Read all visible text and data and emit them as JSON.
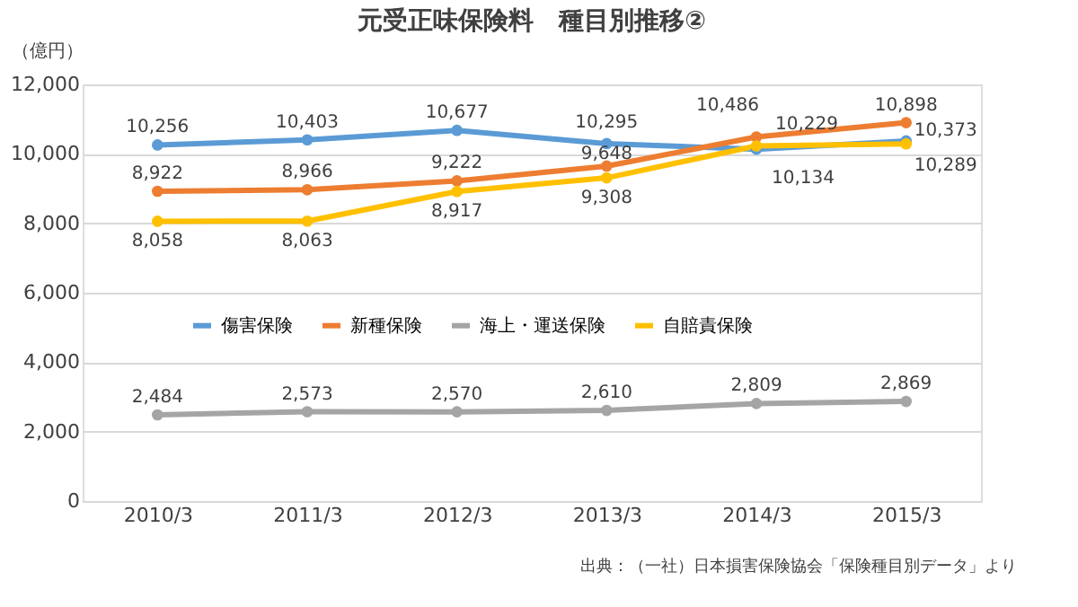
{
  "chart_data": {
    "type": "line",
    "title": "元受正味保険料　種目別推移②",
    "ylabel": "（億円）",
    "categories": [
      "2010/3",
      "2011/3",
      "2012/3",
      "2013/3",
      "2014/3",
      "2015/3"
    ],
    "series": [
      {
        "name": "傷害保険",
        "color": "#5b9bd5",
        "values": [
          10256,
          10403,
          10677,
          10295,
          10134,
          10373
        ],
        "value_labels": [
          "10,256",
          "10,403",
          "10,677",
          "10,295",
          "10,134",
          "10,373"
        ]
      },
      {
        "name": "新種保険",
        "color": "#ed7d31",
        "values": [
          8922,
          8966,
          9222,
          9648,
          10486,
          10898
        ],
        "value_labels": [
          "8,922",
          "8,966",
          "9,222",
          "9,648",
          "10,486",
          "10,898"
        ]
      },
      {
        "name": "海上・運送保険",
        "color": "#a5a5a5",
        "values": [
          2484,
          2573,
          2570,
          2610,
          2809,
          2869
        ],
        "value_labels": [
          "2,484",
          "2,573",
          "2,570",
          "2,610",
          "2,809",
          "2,869"
        ]
      },
      {
        "name": "自賠責保険",
        "color": "#ffc000",
        "values": [
          8058,
          8063,
          8917,
          9308,
          10229,
          10289
        ],
        "value_labels": [
          "8,058",
          "8,063",
          "8,917",
          "9,308",
          "10,229",
          "10,289"
        ]
      }
    ],
    "ylim": [
      0,
      12000
    ],
    "yticks": [
      0,
      {
        "value": 2000,
        "label": "2,000"
      },
      {
        "value": 4000,
        "label": "4,000"
      },
      {
        "value": 6000,
        "label": "6,000"
      },
      {
        "value": 8000,
        "label": "8,000"
      },
      {
        "value": 10000,
        "label": "10,000"
      },
      {
        "value": 12000,
        "label": "12,000"
      }
    ],
    "grid": "y",
    "legend": "center",
    "marker": "circle",
    "line_style": "solid",
    "annotations": [
      "出典：（一社）日本損害保険協会「保険種目別データ」より"
    ]
  }
}
